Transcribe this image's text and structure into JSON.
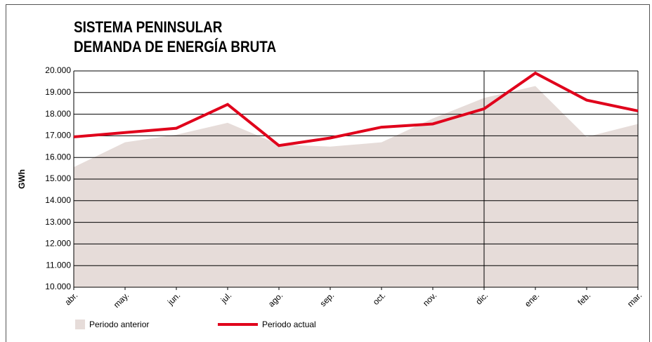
{
  "chart_data": {
    "type": "line",
    "title": [
      "SISTEMA PENINSULAR",
      "DEMANDA DE ENERGÍA BRUTA"
    ],
    "y_label": "GWh",
    "categories": [
      "abr.",
      "may.",
      "jun.",
      "jul.",
      "ago.",
      "sep.",
      "oct.",
      "nov.",
      "dic.",
      "ene.",
      "feb.",
      "mar."
    ],
    "series": [
      {
        "name": "Periodo anterior",
        "kind": "area",
        "color": "#e6dcd9",
        "values": [
          15550,
          16700,
          17050,
          17600,
          16600,
          16500,
          16700,
          17800,
          18750,
          19300,
          16950,
          17550
        ]
      },
      {
        "name": "Periodo actual",
        "kind": "line",
        "color": "#e0001b",
        "values": [
          16950,
          17150,
          17350,
          18450,
          16550,
          16900,
          17400,
          17550,
          18250,
          19900,
          18650,
          18150
        ]
      }
    ],
    "ylim": [
      10000,
      20000
    ],
    "yticks": [
      {
        "value": 10000,
        "label": "10.000"
      },
      {
        "value": 11000,
        "label": "11.000"
      },
      {
        "value": 12000,
        "label": "12.000"
      },
      {
        "value": 13000,
        "label": "13.000"
      },
      {
        "value": 14000,
        "label": "14.000"
      },
      {
        "value": 15000,
        "label": "15.000"
      },
      {
        "value": 16000,
        "label": "16.000"
      },
      {
        "value": 17000,
        "label": "17.000"
      },
      {
        "value": 18000,
        "label": "18.000"
      },
      {
        "value": 19000,
        "label": "19.000"
      },
      {
        "value": 20000,
        "label": "20.000"
      }
    ],
    "grid": true
  }
}
